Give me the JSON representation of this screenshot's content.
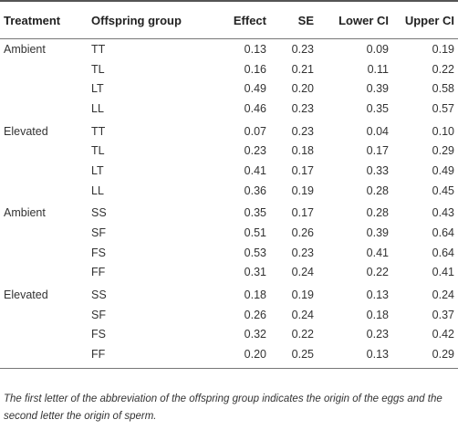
{
  "headers": [
    "Treatment",
    "Offspring group",
    "Effect",
    "SE",
    "Lower CI",
    "Upper CI"
  ],
  "rows": [
    {
      "treatment": "Ambient",
      "group": "TT",
      "effect": "0.13",
      "se": "0.23",
      "lower": "0.09",
      "upper": "0.19"
    },
    {
      "treatment": "",
      "group": "TL",
      "effect": "0.16",
      "se": "0.21",
      "lower": "0.11",
      "upper": "0.22"
    },
    {
      "treatment": "",
      "group": "LT",
      "effect": "0.49",
      "se": "0.20",
      "lower": "0.39",
      "upper": "0.58"
    },
    {
      "treatment": "",
      "group": "LL",
      "effect": "0.46",
      "se": "0.23",
      "lower": "0.35",
      "upper": "0.57"
    },
    {
      "treatment": "Elevated",
      "group": "TT",
      "effect": "0.07",
      "se": "0.23",
      "lower": "0.04",
      "upper": "0.10"
    },
    {
      "treatment": "",
      "group": "TL",
      "effect": "0.23",
      "se": "0.18",
      "lower": "0.17",
      "upper": "0.29"
    },
    {
      "treatment": "",
      "group": "LT",
      "effect": "0.41",
      "se": "0.17",
      "lower": "0.33",
      "upper": "0.49"
    },
    {
      "treatment": "",
      "group": "LL",
      "effect": "0.36",
      "se": "0.19",
      "lower": "0.28",
      "upper": "0.45"
    },
    {
      "treatment": "Ambient",
      "group": "SS",
      "effect": "0.35",
      "se": "0.17",
      "lower": "0.28",
      "upper": "0.43"
    },
    {
      "treatment": "",
      "group": "SF",
      "effect": "0.51",
      "se": "0.26",
      "lower": "0.39",
      "upper": "0.64"
    },
    {
      "treatment": "",
      "group": "FS",
      "effect": "0.53",
      "se": "0.23",
      "lower": "0.41",
      "upper": "0.64"
    },
    {
      "treatment": "",
      "group": "FF",
      "effect": "0.31",
      "se": "0.24",
      "lower": "0.22",
      "upper": "0.41"
    },
    {
      "treatment": "Elevated",
      "group": "SS",
      "effect": "0.18",
      "se": "0.19",
      "lower": "0.13",
      "upper": "0.24"
    },
    {
      "treatment": "",
      "group": "SF",
      "effect": "0.26",
      "se": "0.24",
      "lower": "0.18",
      "upper": "0.37"
    },
    {
      "treatment": "",
      "group": "FS",
      "effect": "0.32",
      "se": "0.22",
      "lower": "0.23",
      "upper": "0.42"
    },
    {
      "treatment": "",
      "group": "FF",
      "effect": "0.20",
      "se": "0.25",
      "lower": "0.13",
      "upper": "0.29"
    }
  ],
  "footnote": "The first letter of the abbreviation of the offspring group indicates the origin of the eggs and the second letter the origin of sperm."
}
